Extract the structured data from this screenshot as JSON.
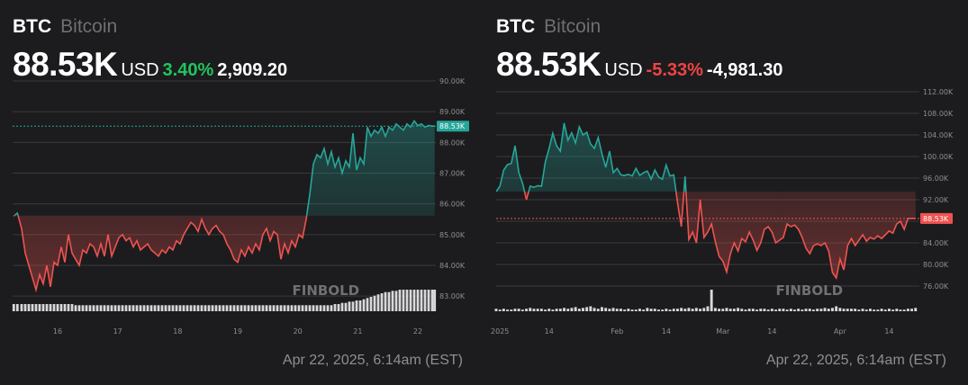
{
  "panels": [
    {
      "symbol": "BTC",
      "name": "Bitcoin",
      "price": "88.53K",
      "currency": "USD",
      "change_pct": "3.40%",
      "change_abs": "2,909.20",
      "timestamp": "Apr 22, 2025, 6:14am (EST)",
      "watermark": "FINBOLD",
      "colors": {
        "up": "#26a69a",
        "down": "#ef5350",
        "pct": "#21c45d"
      }
    },
    {
      "symbol": "BTC",
      "name": "Bitcoin",
      "price": "88.53K",
      "currency": "USD",
      "change_pct": "-5.33%",
      "change_abs": "-4,981.30",
      "timestamp": "Apr 22, 2025, 6:14am (EST)",
      "watermark": "FINBOLD",
      "colors": {
        "up": "#26a69a",
        "down": "#ef5350",
        "pct": "#ef4444"
      }
    }
  ],
  "chart_data": [
    {
      "type": "line",
      "period": "7-day",
      "ylim": [
        82800,
        90000
      ],
      "yticks": [
        83000,
        84000,
        85000,
        86000,
        87000,
        88000,
        89000,
        90000
      ],
      "ytick_labels": [
        "83.00K",
        "84.00K",
        "85.00K",
        "86.00K",
        "87.00K",
        "88.00K",
        "89.00K",
        "90.00K"
      ],
      "xticks": [
        16,
        17,
        18,
        19,
        20,
        21,
        22
      ],
      "xtick_labels": [
        "16",
        "17",
        "18",
        "19",
        "20",
        "21",
        "22"
      ],
      "xlim": [
        15.25,
        22.3
      ],
      "baseline": 85620,
      "last_value": 88530,
      "last_label": "88.53K",
      "grid": true,
      "x": [
        15.27,
        15.33,
        15.4,
        15.46,
        15.52,
        15.58,
        15.64,
        15.7,
        15.76,
        15.82,
        15.88,
        15.94,
        16.0,
        16.06,
        16.12,
        16.18,
        16.24,
        16.3,
        16.36,
        16.42,
        16.48,
        16.54,
        16.6,
        16.66,
        16.72,
        16.78,
        16.84,
        16.9,
        16.96,
        17.02,
        17.08,
        17.14,
        17.2,
        17.26,
        17.32,
        17.38,
        17.44,
        17.5,
        17.56,
        17.62,
        17.68,
        17.74,
        17.8,
        17.86,
        17.92,
        17.98,
        18.04,
        18.1,
        18.16,
        18.22,
        18.28,
        18.34,
        18.4,
        18.46,
        18.52,
        18.58,
        18.64,
        18.7,
        18.76,
        18.82,
        18.88,
        18.94,
        19.0,
        19.06,
        19.12,
        19.18,
        19.24,
        19.3,
        19.36,
        19.42,
        19.48,
        19.54,
        19.6,
        19.66,
        19.72,
        19.78,
        19.84,
        19.9,
        19.96,
        20.02,
        20.08,
        20.14,
        20.2,
        20.26,
        20.32,
        20.38,
        20.44,
        20.5,
        20.56,
        20.62,
        20.68,
        20.74,
        20.8,
        20.86,
        20.92,
        20.98,
        21.04,
        21.1,
        21.16,
        21.22,
        21.28,
        21.34,
        21.4,
        21.46,
        21.52,
        21.58,
        21.64,
        21.7,
        21.76,
        21.82,
        21.88,
        21.94,
        22.0,
        22.06,
        22.12,
        22.18,
        22.24,
        22.28
      ],
      "y": [
        85600,
        85700,
        85200,
        84400,
        84000,
        83600,
        83200,
        83700,
        83400,
        84000,
        83300,
        84100,
        84000,
        84600,
        84100,
        85000,
        84400,
        84200,
        84000,
        84500,
        84400,
        84700,
        84600,
        84300,
        84700,
        84300,
        85000,
        84300,
        84600,
        84900,
        85000,
        84800,
        84900,
        84600,
        84800,
        84500,
        84600,
        84700,
        84500,
        84400,
        84300,
        84500,
        84400,
        84600,
        84500,
        84800,
        84700,
        85000,
        85200,
        85400,
        85300,
        85100,
        85500,
        85200,
        85000,
        85200,
        85300,
        85100,
        85000,
        84700,
        84500,
        84200,
        84100,
        84500,
        84300,
        84600,
        84400,
        84700,
        84500,
        85000,
        85200,
        84800,
        85100,
        85000,
        84200,
        84700,
        84400,
        84800,
        84600,
        85000,
        84900,
        85500,
        86300,
        87300,
        87600,
        87500,
        87800,
        87300,
        87700,
        87200,
        87500,
        87000,
        87400,
        87200,
        88300,
        87100,
        87500,
        87300,
        88500,
        88200,
        88400,
        88300,
        88500,
        88200,
        88500,
        88400,
        88600,
        88500,
        88400,
        88600,
        88500,
        88700,
        88550,
        88600,
        88500,
        88550,
        88530,
        88530
      ],
      "volume": [
        6,
        6,
        6,
        6,
        6,
        6,
        6,
        6,
        6,
        6,
        6,
        6,
        6,
        6,
        6,
        6,
        6,
        5,
        5,
        5,
        5,
        5,
        5,
        5,
        5,
        5,
        5,
        5,
        5,
        5,
        5,
        5,
        5,
        5,
        5,
        5,
        5,
        5,
        5,
        5,
        5,
        5,
        5,
        5,
        5,
        5,
        5,
        5,
        5,
        5,
        5,
        5,
        5,
        5,
        5,
        5,
        5,
        5,
        5,
        5,
        5,
        5,
        5,
        5,
        5,
        5,
        5,
        5,
        5,
        5,
        5,
        5,
        5,
        5,
        5,
        5,
        5,
        5,
        5,
        5,
        5,
        5,
        5,
        5,
        5,
        5,
        5,
        5,
        5,
        6,
        6,
        7,
        7,
        8,
        8,
        9,
        9,
        10,
        11,
        12,
        13,
        14,
        15,
        16,
        16,
        17,
        17,
        18,
        18,
        18,
        18,
        18,
        18,
        18,
        18,
        18,
        18,
        18
      ]
    },
    {
      "type": "line",
      "period": "YTD",
      "ylim": [
        73000,
        114000
      ],
      "yticks": [
        76000,
        80000,
        84000,
        88000,
        92000,
        96000,
        100000,
        104000,
        108000,
        112000
      ],
      "ytick_labels": [
        "76.00K",
        "80.00K",
        "84.00K",
        "88.00K",
        "92.00K",
        "96.00K",
        "100.00K",
        "104.00K",
        "108.00K",
        "112.00K"
      ],
      "xticks": [
        1,
        14,
        32,
        45,
        60,
        73,
        91,
        104
      ],
      "xtick_labels": [
        "2025",
        "14",
        "Feb",
        "14",
        "Mar",
        "14",
        "Apr",
        "14"
      ],
      "xlim": [
        0,
        112
      ],
      "baseline": 93500,
      "last_value": 88530,
      "last_label": "88.53K",
      "grid": true,
      "x": [
        0,
        1,
        2,
        3,
        4,
        5,
        6,
        7,
        8,
        9,
        10,
        11,
        12,
        13,
        14,
        15,
        16,
        17,
        18,
        19,
        20,
        21,
        22,
        23,
        24,
        25,
        26,
        27,
        28,
        29,
        30,
        31,
        32,
        33,
        34,
        35,
        36,
        37,
        38,
        39,
        40,
        41,
        42,
        43,
        44,
        45,
        46,
        47,
        48,
        49,
        50,
        51,
        52,
        53,
        54,
        55,
        56,
        57,
        58,
        59,
        60,
        61,
        62,
        63,
        64,
        65,
        66,
        67,
        68,
        69,
        70,
        71,
        72,
        73,
        74,
        75,
        76,
        77,
        78,
        79,
        80,
        81,
        82,
        83,
        84,
        85,
        86,
        87,
        88,
        89,
        90,
        91,
        92,
        93,
        94,
        95,
        96,
        97,
        98,
        99,
        100,
        101,
        102,
        103,
        104,
        105,
        106,
        107,
        108,
        109,
        110,
        111
      ],
      "y": [
        93500,
        94500,
        97500,
        98500,
        98700,
        102000,
        97000,
        95000,
        92000,
        94500,
        94300,
        94600,
        94500,
        99000,
        101500,
        104300,
        102000,
        101000,
        106200,
        103000,
        104400,
        102500,
        105500,
        104000,
        104500,
        102300,
        101500,
        103500,
        100500,
        98000,
        101000,
        97000,
        97800,
        96600,
        96500,
        96700,
        96400,
        97800,
        96500,
        97000,
        97300,
        95800,
        97500,
        96200,
        95800,
        98400,
        96400,
        96600,
        91500,
        87000,
        96300,
        84600,
        86000,
        84000,
        92000,
        85000,
        86000,
        87500,
        84200,
        81500,
        80600,
        78600,
        82000,
        84000,
        82500,
        84800,
        84200,
        86000,
        84500,
        82600,
        84000,
        86500,
        87000,
        86000,
        84000,
        84500,
        85000,
        87500,
        87000,
        87300,
        86500,
        85000,
        83000,
        82000,
        83500,
        83800,
        83500,
        84000,
        82500,
        78500,
        77500,
        81000,
        79000,
        83500,
        84800,
        83500,
        84500,
        85500,
        84300,
        85000,
        84700,
        85300,
        84800,
        85500,
        86200,
        85800,
        87500,
        88000,
        86500,
        88530,
        88530,
        88530
      ],
      "volume": [
        3,
        2,
        3,
        2,
        2,
        3,
        3,
        2,
        3,
        4,
        3,
        3,
        3,
        2,
        3,
        2,
        3,
        3,
        4,
        3,
        4,
        5,
        3,
        4,
        5,
        6,
        4,
        3,
        5,
        4,
        3,
        4,
        3,
        3,
        2,
        3,
        2,
        2,
        3,
        2,
        4,
        3,
        3,
        2,
        2,
        3,
        2,
        3,
        3,
        4,
        3,
        4,
        3,
        4,
        3,
        4,
        6,
        26,
        4,
        3,
        3,
        4,
        3,
        3,
        4,
        3,
        2,
        3,
        3,
        2,
        3,
        3,
        2,
        3,
        2,
        3,
        3,
        2,
        3,
        2,
        3,
        2,
        3,
        3,
        2,
        3,
        3,
        4,
        3,
        4,
        6,
        4,
        3,
        3,
        3,
        3,
        2,
        3,
        2,
        3,
        2,
        2,
        3,
        2,
        3,
        2,
        3,
        2,
        2,
        3,
        3,
        4
      ]
    }
  ]
}
